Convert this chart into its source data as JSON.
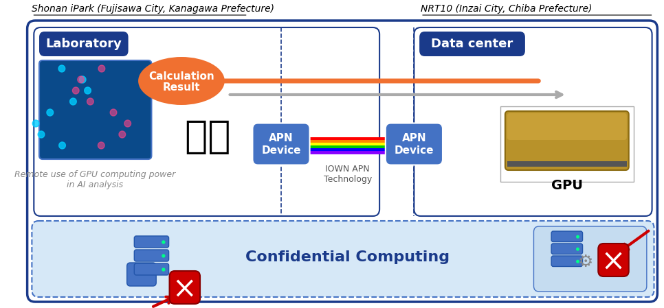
{
  "bg_color": "#ffffff",
  "title_left": "Shonan iPark (Fujisawa City, Kanagawa Prefecture)",
  "title_right": "NRT10 (Inzai City, Chiba Prefecture)",
  "label_laboratory": "Laboratory",
  "label_datacenter": "Data center",
  "label_apn1": "APN\nDevice",
  "label_apn2": "APN\nDevice",
  "label_iown": "IOWN APN\nTechnology",
  "label_gpu": "GPU",
  "label_calc": "Calculation\nResult",
  "label_remote": "Remote use of GPU computing power\nin AI analysis",
  "label_confidential": "Confidential Computing",
  "outer_box_color": "#1a3a8a",
  "left_box_color": "#1a3a8a",
  "right_box_color": "#1a3a8a",
  "lab_label_bg": "#1a3a8a",
  "dc_label_bg": "#1a3a8a",
  "apn_box_color": "#4472c4",
  "confidential_box_color": "#d6e8f7",
  "confidential_border": "#4472c4",
  "arrow_orange_color": "#f07030",
  "arrow_gray_color": "#cccccc",
  "calc_bubble_color": "#f07030",
  "rainbow_colors": [
    "#ff0000",
    "#ff8800",
    "#ffff00",
    "#00cc00",
    "#0000ff",
    "#8800ff"
  ],
  "font_color_white": "#ffffff",
  "font_color_dark": "#1a3a8a",
  "font_color_gray": "#888888"
}
